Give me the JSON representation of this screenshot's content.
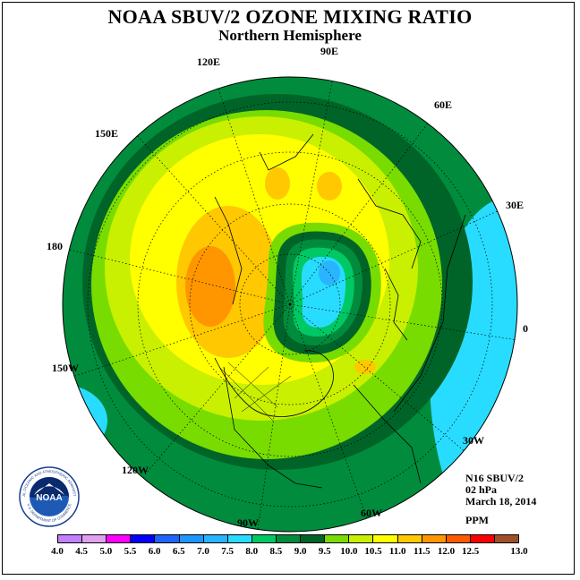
{
  "header": {
    "title": "NOAA SBUV/2 OZONE MIXING RATIO",
    "subtitle": "Northern Hemisphere"
  },
  "longitude_labels": {
    "e90": "90E",
    "e120": "120E",
    "e60": "60E",
    "e150": "150E",
    "e30": "30E",
    "l180": "180",
    "l0": "0",
    "w150": "150W",
    "w30": "30W",
    "w120": "120W",
    "w90": "90W",
    "w60": "60W"
  },
  "info": {
    "instrument": "N16 SBUV/2",
    "pressure": "02 hPa",
    "date": "March 18, 2014",
    "units": "PPM"
  },
  "logo": {
    "text": "NOAA",
    "ring_top": "NATIONAL OCEANIC AND ATMOSPHERIC ADMINISTRATION",
    "ring_bottom": "U.S. DEPARTMENT OF COMMERCE"
  },
  "legend": {
    "ticks": [
      "4.0",
      "4.5",
      "5.0",
      "5.5",
      "6.0",
      "6.5",
      "7.0",
      "7.5",
      "8.0",
      "8.5",
      "9.0",
      "9.5",
      "10.0",
      "10.5",
      "11.0",
      "11.5",
      "12.0",
      "12.5",
      "13.0"
    ],
    "colors": [
      "#c080ff",
      "#e0a0f0",
      "#ff00ff",
      "#0000ff",
      "#1e64ff",
      "#1e96ff",
      "#28b4ff",
      "#28dcff",
      "#00c864",
      "#008c3c",
      "#006428",
      "#78dc00",
      "#c8f000",
      "#ffff00",
      "#ffc800",
      "#ff9600",
      "#ff5a00",
      "#ff0000",
      "#a05028"
    ]
  },
  "map": {
    "outer_band_color": "#008c3c",
    "ocean_edge_color": "#28dcff"
  }
}
